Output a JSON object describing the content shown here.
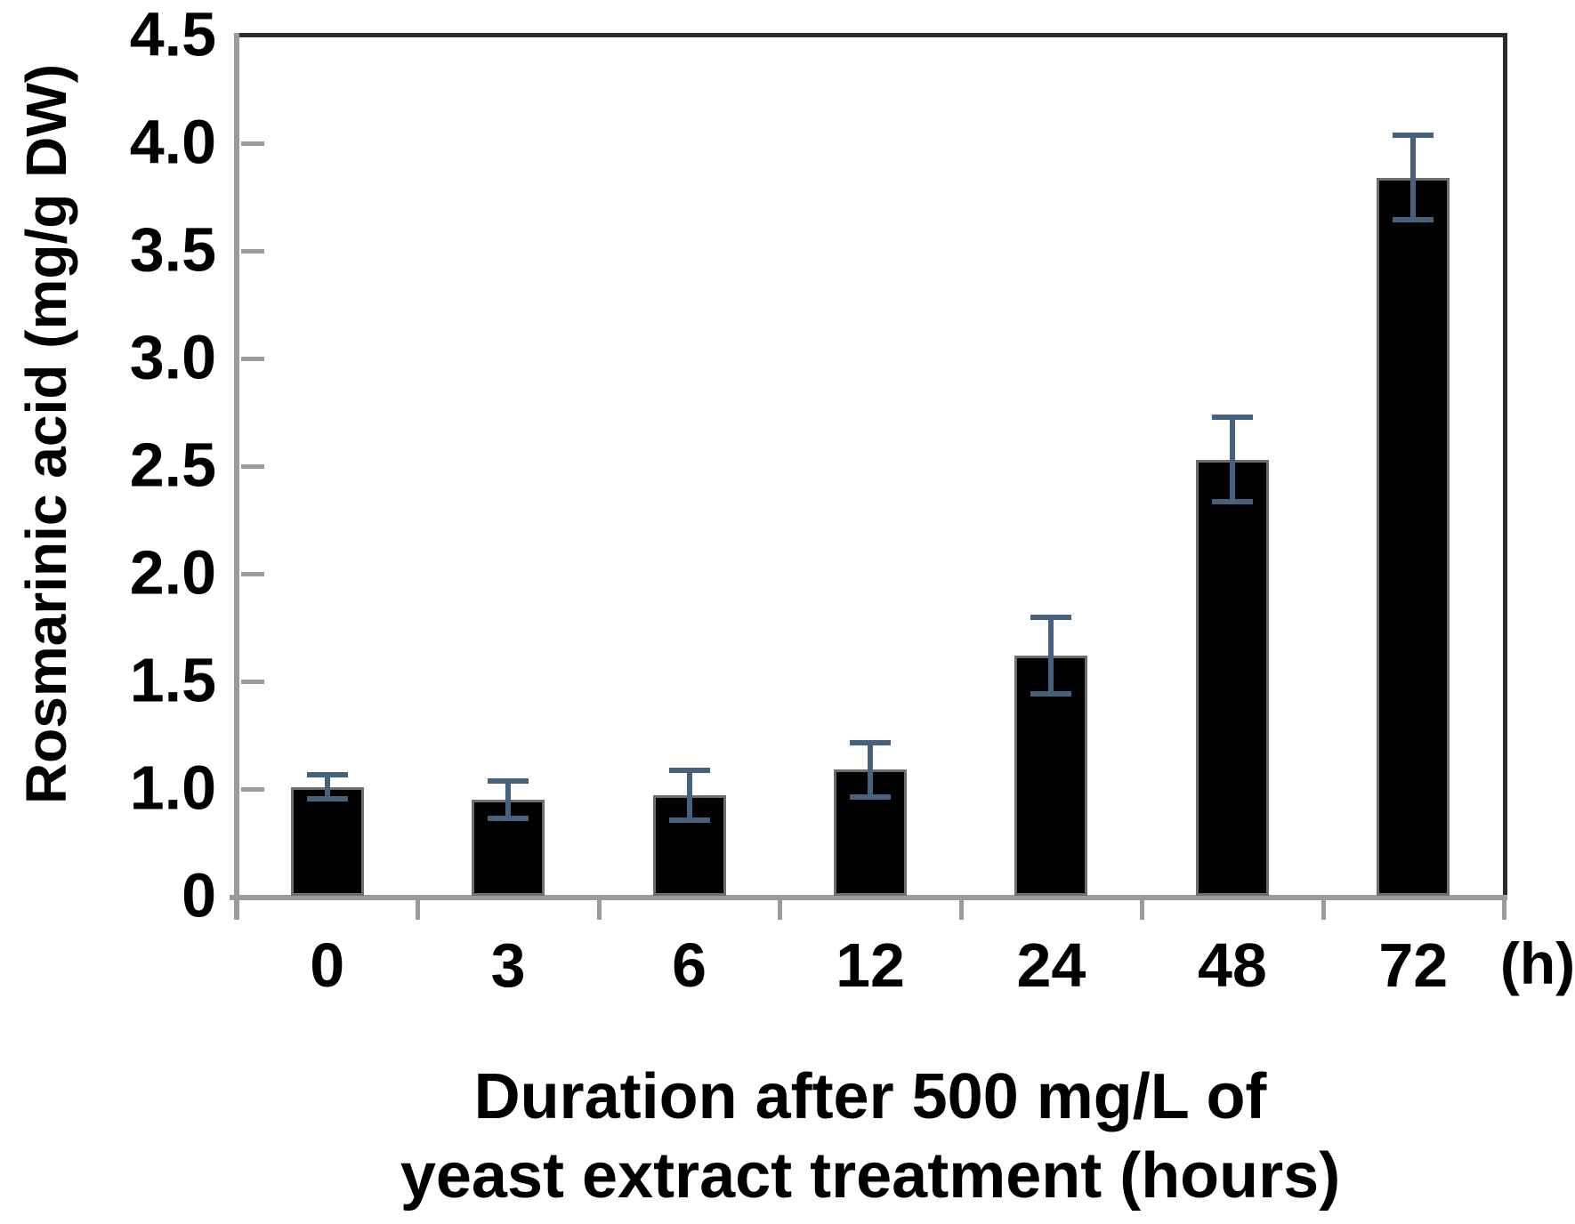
{
  "chart_data": {
    "type": "bar",
    "title": "",
    "ylabel": "Rosmarinic acid (mg/g DW)",
    "xlabel_lines": [
      "Duration after 500 mg/L of",
      "yeast extract treatment (hours)"
    ],
    "x_unit_label": "(h)",
    "categories": [
      "0",
      "3",
      "6",
      "12",
      "24",
      "48",
      "72"
    ],
    "values": [
      1.01,
      0.95,
      0.97,
      1.09,
      1.62,
      2.53,
      3.84
    ],
    "errors": [
      0.06,
      0.09,
      0.12,
      0.13,
      0.18,
      0.2,
      0.2
    ],
    "y_tick_labels": [
      "4.5",
      "4.0",
      "3.5",
      "3.0",
      "2.5",
      "2.0",
      "1.5",
      "1.0",
      "0"
    ],
    "ylim": [
      0,
      4.5
    ],
    "grid": false,
    "legend": false,
    "colors": {
      "bar_fill": "#000000",
      "bar_border": "#6E6E6E",
      "error_bar": "#45617C",
      "axis_line": "#9B9B9B",
      "plot_border": "#2B2B2B",
      "text": "#000000"
    }
  }
}
